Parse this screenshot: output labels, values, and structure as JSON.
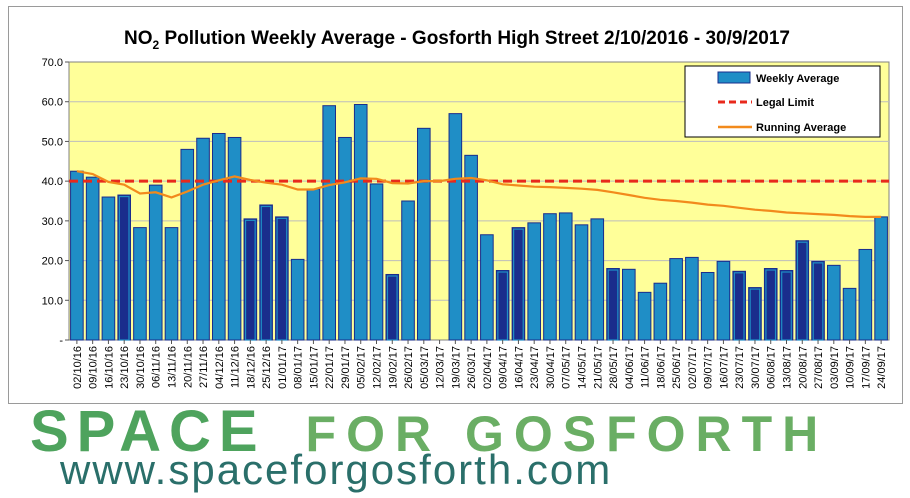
{
  "chart_data": {
    "type": "bar",
    "title_main": "NO",
    "title_sub": "2",
    "title_rest": " Pollution Weekly Average - Gosforth High Street 2/10/2016 - 30/9/2017",
    "ylim": [
      0,
      70
    ],
    "yticks": [
      "-",
      "10.0",
      "20.0",
      "30.0",
      "40.0",
      "50.0",
      "60.0",
      "70.0"
    ],
    "ytick_values": [
      0,
      10,
      20,
      30,
      40,
      50,
      60,
      70
    ],
    "categories": [
      "02/10/16",
      "09/10/16",
      "16/10/16",
      "23/10/16",
      "30/10/16",
      "06/11/16",
      "13/11/16",
      "20/11/16",
      "27/11/16",
      "04/12/16",
      "11/12/16",
      "18/12/16",
      "25/12/16",
      "01/01/17",
      "08/01/17",
      "15/01/17",
      "22/01/17",
      "29/01/17",
      "05/02/17",
      "12/02/17",
      "19/02/17",
      "26/02/17",
      "05/03/17",
      "12/03/17",
      "19/03/17",
      "26/03/17",
      "02/04/17",
      "09/04/17",
      "16/04/17",
      "23/04/17",
      "30/04/17",
      "07/05/17",
      "14/05/17",
      "21/05/17",
      "28/05/17",
      "04/06/17",
      "11/06/17",
      "18/06/17",
      "25/06/17",
      "02/07/17",
      "09/07/17",
      "16/07/17",
      "23/07/17",
      "30/07/17",
      "06/08/17",
      "13/08/17",
      "20/08/17",
      "27/08/17",
      "03/09/17",
      "10/09/17",
      "17/09/17",
      "24/09/17"
    ],
    "series": [
      {
        "name": "Weekly Average",
        "color": "#1f8ec6",
        "dark_color": "#1a2d8c",
        "values": [
          42.5,
          41,
          36,
          36.5,
          28.3,
          39,
          28.3,
          48,
          50.8,
          52,
          51,
          30.5,
          34,
          31,
          20.3,
          38,
          59,
          51,
          59.3,
          39.3,
          16.5,
          35,
          53.3,
          null,
          57,
          46.5,
          26.5,
          17.5,
          28.3,
          29.5,
          31.8,
          32,
          29,
          30.5,
          18,
          17.8,
          12,
          14.3,
          20.5,
          20.8,
          17,
          19.8,
          17.3,
          13.2,
          18,
          17.5,
          25,
          19.8,
          18.8,
          13,
          22.8,
          31
        ],
        "dark": [
          false,
          false,
          false,
          true,
          false,
          false,
          false,
          false,
          false,
          false,
          false,
          true,
          true,
          true,
          false,
          false,
          false,
          false,
          false,
          false,
          true,
          false,
          false,
          false,
          false,
          false,
          false,
          true,
          true,
          false,
          false,
          false,
          false,
          false,
          true,
          false,
          false,
          false,
          false,
          false,
          false,
          false,
          true,
          true,
          true,
          true,
          true,
          true,
          false,
          false,
          false,
          false
        ]
      },
      {
        "name": "Legal Limit",
        "color": "#e8291c",
        "value": 40
      },
      {
        "name": "Running Average",
        "color": "#f28a1c",
        "values": [
          42.5,
          41.8,
          39.8,
          39.1,
          36.9,
          37.2,
          35.9,
          37.4,
          39.1,
          40.2,
          41.2,
          40.3,
          39.6,
          39.1,
          37.9,
          37.9,
          39.0,
          39.7,
          40.7,
          40.6,
          39.5,
          39.4,
          40.0,
          40.0,
          40.6,
          40.8,
          40.2,
          39.2,
          38.9,
          38.6,
          38.5,
          38.3,
          38.1,
          37.8,
          37.2,
          36.5,
          35.8,
          35.3,
          35.0,
          34.6,
          34.1,
          33.8,
          33.3,
          32.8,
          32.5,
          32.1,
          31.9,
          31.7,
          31.5,
          31.2,
          31.0,
          31.0
        ]
      }
    ],
    "legend_position": "top-right",
    "background_color": "#ffff99"
  },
  "branding": {
    "line1_a": "SPACE",
    "line1_b": "FOR GOSFORTH",
    "line2": "www.spaceforgosforth.com"
  }
}
